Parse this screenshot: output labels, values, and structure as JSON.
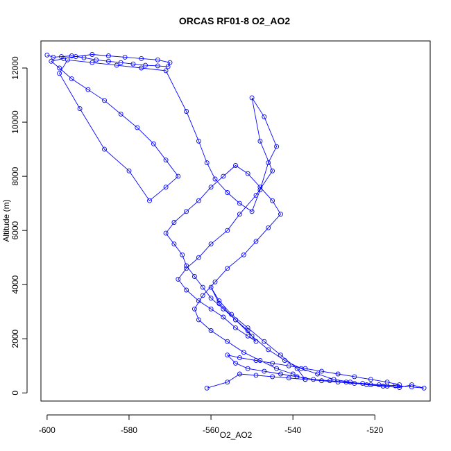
{
  "chart_data": {
    "type": "line",
    "title": "ORCAS RF01-8 O2_AO2",
    "xlabel": "O2_AO2",
    "ylabel": "Altitude (m)",
    "xlim": [
      -601.5,
      -506.5
    ],
    "ylim": [
      -300,
      13000
    ],
    "xticks": [
      "-600",
      "-580",
      "-560",
      "-540",
      "-520"
    ],
    "xtick_values": [
      -600,
      -580,
      -560,
      -540,
      -520
    ],
    "yticks": [
      "0",
      "2000",
      "4000",
      "6000",
      "8000",
      "10000",
      "12000"
    ],
    "ytick_values": [
      0,
      2000,
      4000,
      6000,
      8000,
      10000,
      12000
    ],
    "grid": false,
    "legend": "none",
    "series": [
      {
        "color": "#0000ff",
        "marker": "open-circle",
        "x": [
          -600,
          -598.5,
          -596.5,
          -594,
          -591,
          -588,
          -585,
          -582,
          -579,
          -576,
          -573,
          -570.5,
          -570,
          -573,
          -577,
          -581,
          -585,
          -589,
          -593,
          -596,
          -599,
          -597,
          -594,
          -590,
          -586,
          -582,
          -578,
          -574,
          -571,
          -568,
          -571,
          -575,
          -580,
          -586,
          -592,
          -597,
          -595,
          -589,
          -583,
          -577,
          -571,
          -566,
          -563,
          -561,
          -559,
          -556,
          -553,
          -550,
          -548,
          -546,
          -544,
          -547,
          -550,
          -548,
          -545,
          -549,
          -553,
          -556,
          -560,
          -563,
          -566,
          -568,
          -566,
          -563,
          -560,
          -557,
          -554,
          -551,
          -549,
          -551,
          -554,
          -557,
          -560,
          -562,
          -564,
          -566,
          -567,
          -569,
          -571,
          -569,
          -566,
          -563,
          -560,
          -557,
          -554,
          -551,
          -548,
          -545,
          -543,
          -546,
          -549,
          -552,
          -556,
          -559,
          -562,
          -564,
          -563,
          -560,
          -556,
          -552,
          -548,
          -544,
          -540,
          -537,
          -539,
          -543,
          -547,
          -551,
          -555,
          -558,
          -560,
          -558,
          -554,
          -550,
          -546,
          -542,
          -538,
          -534,
          -530,
          -526,
          -522,
          -518,
          -514,
          -511,
          -508,
          -511,
          -515,
          -519,
          -523,
          -527,
          -531,
          -535,
          -539,
          -543,
          -547,
          -551,
          -554,
          -556,
          -553,
          -549,
          -545,
          -541,
          -537,
          -533,
          -529,
          -525,
          -521,
          -517,
          -514,
          -517,
          -521,
          -525,
          -529,
          -533,
          -537,
          -541,
          -545,
          -549,
          -553,
          -556,
          -561
        ],
        "y": [
          12480,
          12400,
          12420,
          12450,
          12380,
          12300,
          12250,
          12200,
          12150,
          12100,
          12080,
          12050,
          12200,
          12300,
          12350,
          12400,
          12450,
          12500,
          12420,
          12350,
          12250,
          12000,
          11600,
          11200,
          10800,
          10300,
          9800,
          9200,
          8600,
          8000,
          7600,
          7100,
          8200,
          9000,
          10500,
          11800,
          12300,
          12200,
          12100,
          12000,
          11900,
          10400,
          9300,
          8500,
          7900,
          7400,
          7000,
          6700,
          7500,
          8500,
          9100,
          10200,
          10900,
          9300,
          8200,
          7300,
          6600,
          6000,
          5500,
          5000,
          4600,
          4200,
          3800,
          3400,
          3100,
          2800,
          2400,
          2100,
          1900,
          2300,
          2700,
          3100,
          3500,
          3900,
          4300,
          4700,
          5100,
          5500,
          5900,
          6300,
          6700,
          7100,
          7600,
          8000,
          8400,
          8100,
          7600,
          7100,
          6600,
          6100,
          5600,
          5100,
          4600,
          4100,
          3600,
          3100,
          2700,
          2300,
          1900,
          1500,
          1200,
          900,
          700,
          500,
          900,
          1400,
          1900,
          2400,
          2900,
          3400,
          3900,
          3300,
          2700,
          2100,
          1600,
          1200,
          900,
          700,
          500,
          400,
          300,
          250,
          200,
          300,
          180,
          220,
          260,
          300,
          350,
          400,
          450,
          500,
          600,
          700,
          800,
          900,
          1100,
          1400,
          1300,
          1200,
          1100,
          1000,
          900,
          800,
          700,
          600,
          500,
          400,
          300,
          250,
          300,
          350,
          400,
          450,
          500,
          550,
          600,
          650,
          700,
          400,
          180
        ]
      }
    ]
  }
}
